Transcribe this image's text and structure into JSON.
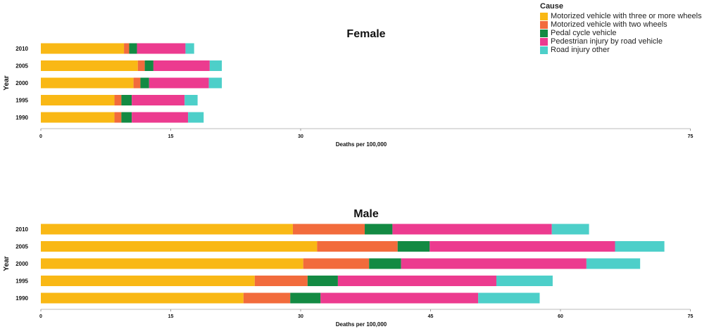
{
  "legend": {
    "title": "Cause",
    "items": [
      {
        "label": "Motorized vehicle with three or more wheels",
        "color": "#f9b815"
      },
      {
        "label": "Motorized vehicle with two wheels",
        "color": "#f26b3c"
      },
      {
        "label": "Pedal cycle vehicle",
        "color": "#138a43"
      },
      {
        "label": "Pedestrian injury by road vehicle",
        "color": "#ec3b8f"
      },
      {
        "label": "Road injury other",
        "color": "#4dcfc9"
      }
    ]
  },
  "chart_data": [
    {
      "type": "bar",
      "orientation": "horizontal",
      "stacked": true,
      "title": "Female",
      "xlabel": "Deaths per 100,000",
      "ylabel": "Year",
      "categories": [
        "2010",
        "2005",
        "2000",
        "1995",
        "1990"
      ],
      "x_ticks": [
        "0",
        "15",
        "30",
        "75"
      ],
      "series": [
        {
          "name": "Motorized vehicle with three or more wheels",
          "values": [
            9.6,
            11.2,
            10.7,
            8.5,
            8.5
          ]
        },
        {
          "name": "Motorized vehicle with two wheels",
          "values": [
            0.6,
            0.8,
            0.8,
            0.8,
            0.8
          ]
        },
        {
          "name": "Pedal cycle vehicle",
          "values": [
            0.9,
            1.0,
            1.0,
            1.2,
            1.2
          ]
        },
        {
          "name": "Pedestrian injury by road vehicle",
          "values": [
            5.6,
            6.5,
            6.9,
            6.1,
            6.5
          ]
        },
        {
          "name": "Road injury other",
          "values": [
            1.0,
            1.4,
            1.5,
            1.5,
            1.8
          ]
        }
      ]
    },
    {
      "type": "bar",
      "orientation": "horizontal",
      "stacked": true,
      "title": "Male",
      "xlabel": "Deaths per 100,000",
      "ylabel": "Year",
      "categories": [
        "2010",
        "2005",
        "2000",
        "1995",
        "1990"
      ],
      "x_ticks": [
        "0",
        "15",
        "30",
        "45",
        "60",
        "75"
      ],
      "series": [
        {
          "name": "Motorized vehicle with three or more wheels",
          "values": [
            29.1,
            31.9,
            30.3,
            24.7,
            23.4
          ]
        },
        {
          "name": "Motorized vehicle with two wheels",
          "values": [
            8.3,
            9.3,
            7.6,
            6.1,
            5.4
          ]
        },
        {
          "name": "Pedal cycle vehicle",
          "values": [
            3.2,
            3.7,
            3.7,
            3.5,
            3.5
          ]
        },
        {
          "name": "Pedestrian injury by road vehicle",
          "values": [
            18.4,
            21.4,
            21.4,
            18.3,
            18.2
          ]
        },
        {
          "name": "Road injury other",
          "values": [
            4.3,
            5.7,
            6.2,
            6.5,
            7.1
          ]
        }
      ]
    }
  ]
}
